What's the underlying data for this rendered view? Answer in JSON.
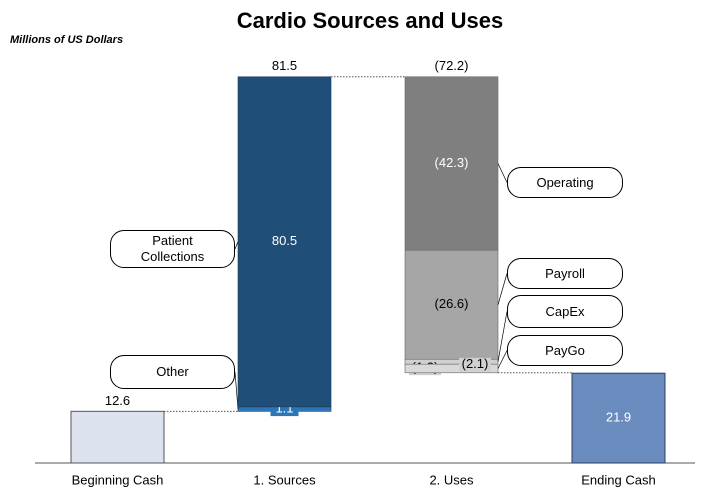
{
  "chart_data": {
    "type": "waterfall",
    "title": "Cardio Sources and Uses",
    "subtitle": "Millions of US Dollars",
    "categories": [
      "Beginning Cash",
      "1. Sources",
      "2. Uses",
      "Ending Cash"
    ],
    "beginning": 12.6,
    "beginning_color": "#dce3ee",
    "sources": {
      "total": 81.5,
      "segments": [
        {
          "name": "Other",
          "value": 1.1,
          "color": "#2e75b6"
        },
        {
          "name": "Patient Collections",
          "value": 80.5,
          "color": "#1f4e79"
        }
      ]
    },
    "uses": {
      "total": -72.2,
      "total_label": "(72.2)",
      "segments": [
        {
          "name": "Operating",
          "value": -42.3,
          "value_label": "(42.3)",
          "color": "#7f7f7f"
        },
        {
          "name": "Payroll",
          "value": -26.6,
          "value_label": "(26.6)",
          "color": "#a6a6a6"
        },
        {
          "name": "CapEx",
          "value": -1.2,
          "value_label": "(1.2)",
          "color": "#d0d0d0"
        },
        {
          "name": "PayGo",
          "value": -2.1,
          "value_label": "(2.1)",
          "color": "#d9d9d9"
        }
      ]
    },
    "ending": 21.9,
    "ending_color": "#6a8bbd"
  }
}
